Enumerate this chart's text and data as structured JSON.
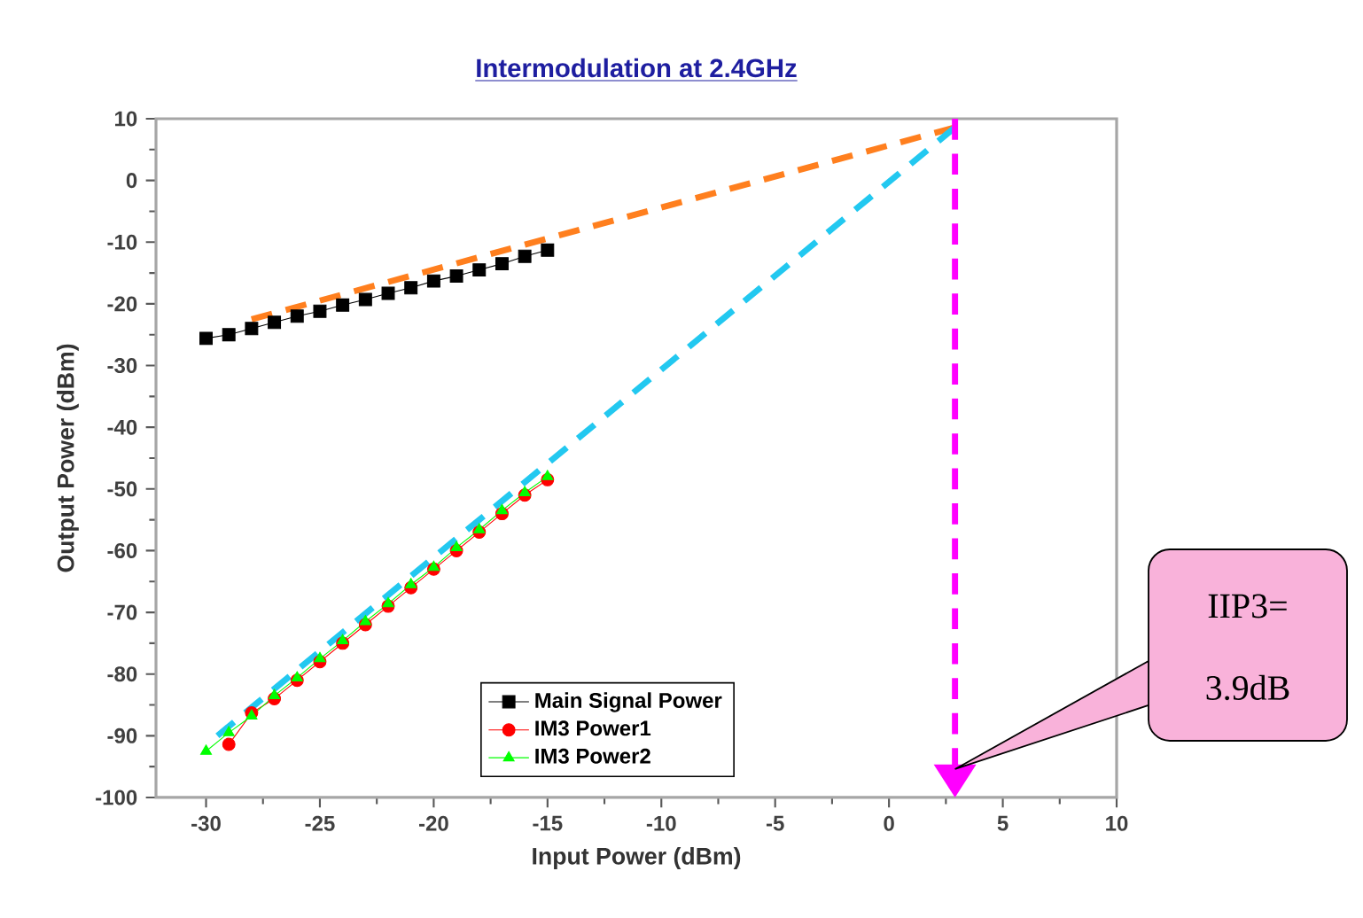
{
  "chart_data": {
    "type": "line",
    "title": "Intermodulation at 2.4GHz",
    "xlabel": "Input Power (dBm)",
    "ylabel": "Output Power (dBm)",
    "xlim": [
      -32.2,
      10
    ],
    "ylim": [
      -100,
      10
    ],
    "xticks": [
      -30,
      -25,
      -20,
      -15,
      -10,
      -5,
      0,
      5,
      10
    ],
    "yticks": [
      -100,
      -90,
      -80,
      -70,
      -60,
      -50,
      -40,
      -30,
      -20,
      -10,
      0,
      10
    ],
    "legend": "bottom",
    "series": [
      {
        "name": "Main Signal Power",
        "color": "#000000",
        "marker": "square",
        "x": [
          -30,
          -29,
          -28,
          -27,
          -26,
          -25,
          -24,
          -23,
          -22,
          -21,
          -20,
          -19,
          -18,
          -17,
          -16,
          -15
        ],
        "values": [
          -25.6,
          -25,
          -24,
          -23,
          -22,
          -21.2,
          -20.2,
          -19.3,
          -18.3,
          -17.4,
          -16.3,
          -15.5,
          -14.5,
          -13.5,
          -12.3,
          -11.3
        ]
      },
      {
        "name": "IM3 Power1",
        "color": "#ff0000",
        "marker": "circle",
        "x": [
          -29,
          -28,
          -27,
          -26,
          -25,
          -24,
          -23,
          -22,
          -21,
          -20,
          -19,
          -18,
          -17,
          -16,
          -15
        ],
        "values": [
          -91.4,
          -86.3,
          -84,
          -81,
          -78,
          -75,
          -72,
          -69,
          -66,
          -63,
          -60,
          -57,
          -54,
          -51,
          -48.5
        ]
      },
      {
        "name": "IM3 Power2",
        "color": "#00ff00",
        "marker": "triangle",
        "x": [
          -30,
          -29,
          -28,
          -27,
          -26,
          -25,
          -24,
          -23,
          -22,
          -21,
          -20,
          -19,
          -18,
          -17,
          -16,
          -15
        ],
        "values": [
          -92.5,
          -89.5,
          -86.8,
          -83.5,
          -80.6,
          -77.5,
          -74.6,
          -71.5,
          -68.6,
          -65.5,
          -62.7,
          -59.5,
          -56.6,
          -53.5,
          -50.6,
          -48
        ]
      },
      {
        "type": "line",
        "color": "#ff7f1e",
        "marker": "none",
        "line_style": "dashed",
        "x": [
          -28,
          2.9
        ],
        "values": [
          -22.5,
          8.6
        ]
      },
      {
        "type": "line",
        "color": "#22c8f0",
        "marker": "none",
        "line_style": "dashed",
        "x": [
          -29.5,
          2.9
        ],
        "values": [
          -90,
          8.6
        ]
      }
    ],
    "ref_lines": [
      {
        "axis": "x",
        "value": 2.9,
        "color": "#ff00ff",
        "line_style": "dashed"
      }
    ],
    "annotations": [
      "IIP3=",
      "3.9dB"
    ]
  }
}
